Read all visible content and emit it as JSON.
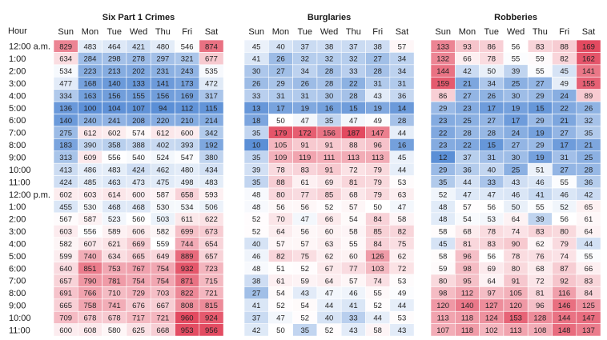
{
  "chart_data": {
    "type": "heatmap",
    "row_header": "Hour",
    "rows": [
      "12:00 a.m.",
      "1:00",
      "2:00",
      "3:00",
      "4:00",
      "5:00",
      "6:00",
      "7:00",
      "8:00",
      "9:00",
      "10:00",
      "11:00",
      "12:00 p.m.",
      "1:00",
      "2:00",
      "3:00",
      "4:00",
      "5:00",
      "6:00",
      "7:00",
      "8:00",
      "9:00",
      "10:00",
      "11:00"
    ],
    "columns": [
      "Sun",
      "Mon",
      "Tue",
      "Wed",
      "Thu",
      "Fri",
      "Sat"
    ],
    "colors": {
      "low": "#5b8fd6",
      "mid": "#ffffff",
      "high": "#e34a60"
    },
    "panels": [
      {
        "title": "Six Part 1 Crimes",
        "values": [
          [
            829,
            483,
            464,
            421,
            480,
            546,
            874
          ],
          [
            634,
            284,
            298,
            278,
            297,
            321,
            677
          ],
          [
            534,
            223,
            213,
            202,
            231,
            243,
            535
          ],
          [
            477,
            168,
            140,
            133,
            141,
            173,
            472
          ],
          [
            334,
            163,
            156,
            155,
            156,
            169,
            317
          ],
          [
            136,
            100,
            104,
            107,
            94,
            112,
            115
          ],
          [
            140,
            240,
            241,
            208,
            220,
            210,
            214
          ],
          [
            275,
            612,
            602,
            574,
            612,
            600,
            342
          ],
          [
            183,
            390,
            358,
            388,
            402,
            393,
            192
          ],
          [
            313,
            609,
            556,
            540,
            524,
            547,
            380
          ],
          [
            413,
            486,
            483,
            424,
            462,
            480,
            434
          ],
          [
            424,
            485,
            463,
            473,
            475,
            498,
            483
          ],
          [
            602,
            603,
            614,
            600,
            587,
            658,
            593
          ],
          [
            455,
            530,
            468,
            468,
            530,
            534,
            506
          ],
          [
            567,
            587,
            523,
            560,
            503,
            611,
            622
          ],
          [
            603,
            556,
            589,
            606,
            582,
            699,
            673
          ],
          [
            582,
            607,
            621,
            669,
            559,
            744,
            654
          ],
          [
            599,
            740,
            634,
            665,
            649,
            889,
            657
          ],
          [
            640,
            851,
            753,
            767,
            754,
            932,
            723
          ],
          [
            657,
            790,
            781,
            754,
            754,
            871,
            715
          ],
          [
            691,
            766,
            710,
            729,
            703,
            822,
            721
          ],
          [
            665,
            758,
            741,
            676,
            667,
            808,
            815
          ],
          [
            709,
            678,
            678,
            717,
            721,
            960,
            924
          ],
          [
            600,
            608,
            580,
            625,
            668,
            953,
            956
          ]
        ]
      },
      {
        "title": "Burglaries",
        "values": [
          [
            45,
            40,
            37,
            38,
            37,
            38,
            57
          ],
          [
            41,
            26,
            32,
            32,
            32,
            27,
            34
          ],
          [
            30,
            27,
            34,
            28,
            33,
            28,
            34
          ],
          [
            26,
            29,
            26,
            28,
            22,
            31,
            31
          ],
          [
            33,
            31,
            31,
            30,
            28,
            43,
            36
          ],
          [
            13,
            17,
            19,
            16,
            15,
            19,
            14
          ],
          [
            18,
            50,
            47,
            35,
            47,
            49,
            28
          ],
          [
            35,
            179,
            172,
            156,
            187,
            147,
            44
          ],
          [
            10,
            105,
            91,
            91,
            88,
            96,
            16
          ],
          [
            35,
            109,
            119,
            111,
            113,
            113,
            45
          ],
          [
            39,
            78,
            83,
            91,
            72,
            79,
            44
          ],
          [
            35,
            88,
            61,
            69,
            81,
            79,
            53
          ],
          [
            48,
            80,
            77,
            85,
            68,
            79,
            63
          ],
          [
            48,
            56,
            56,
            52,
            57,
            50,
            47
          ],
          [
            52,
            70,
            47,
            66,
            54,
            84,
            58
          ],
          [
            52,
            64,
            56,
            60,
            58,
            85,
            82
          ],
          [
            40,
            57,
            57,
            63,
            55,
            84,
            75
          ],
          [
            46,
            82,
            75,
            62,
            60,
            126,
            62
          ],
          [
            48,
            51,
            52,
            67,
            77,
            103,
            72
          ],
          [
            38,
            61,
            59,
            64,
            57,
            74,
            53
          ],
          [
            27,
            54,
            43,
            47,
            46,
            55,
            49
          ],
          [
            41,
            52,
            54,
            44,
            41,
            52,
            44
          ],
          [
            37,
            47,
            52,
            40,
            33,
            44,
            53
          ],
          [
            42,
            50,
            35,
            52,
            43,
            58,
            43
          ]
        ]
      },
      {
        "title": "Robberies",
        "values": [
          [
            133,
            93,
            86,
            56,
            83,
            88,
            169
          ],
          [
            132,
            66,
            78,
            55,
            59,
            82,
            162
          ],
          [
            144,
            42,
            50,
            39,
            55,
            45,
            141
          ],
          [
            159,
            21,
            34,
            25,
            27,
            49,
            155
          ],
          [
            86,
            27,
            26,
            30,
            29,
            24,
            89
          ],
          [
            29,
            23,
            17,
            19,
            15,
            22,
            26
          ],
          [
            23,
            25,
            27,
            17,
            29,
            21,
            32
          ],
          [
            22,
            28,
            28,
            24,
            19,
            27,
            35
          ],
          [
            23,
            22,
            15,
            27,
            29,
            17,
            21
          ],
          [
            12,
            37,
            31,
            30,
            19,
            31,
            25
          ],
          [
            29,
            36,
            40,
            25,
            51,
            27,
            28
          ],
          [
            35,
            44,
            33,
            43,
            46,
            55,
            36
          ],
          [
            52,
            47,
            47,
            46,
            41,
            46,
            42
          ],
          [
            48,
            57,
            56,
            50,
            55,
            52,
            65
          ],
          [
            48,
            54,
            53,
            64,
            39,
            56,
            61
          ],
          [
            58,
            68,
            78,
            74,
            83,
            80,
            64
          ],
          [
            45,
            81,
            83,
            90,
            62,
            79,
            44
          ],
          [
            58,
            96,
            56,
            78,
            76,
            74,
            55
          ],
          [
            59,
            98,
            69,
            80,
            68,
            87,
            66
          ],
          [
            80,
            95,
            64,
            91,
            72,
            92,
            83
          ],
          [
            98,
            112,
            97,
            105,
            81,
            116,
            84
          ],
          [
            120,
            140,
            127,
            120,
            96,
            146,
            125
          ],
          [
            113,
            118,
            124,
            153,
            128,
            144,
            147
          ],
          [
            107,
            118,
            102,
            113,
            108,
            148,
            137
          ]
        ]
      }
    ]
  }
}
